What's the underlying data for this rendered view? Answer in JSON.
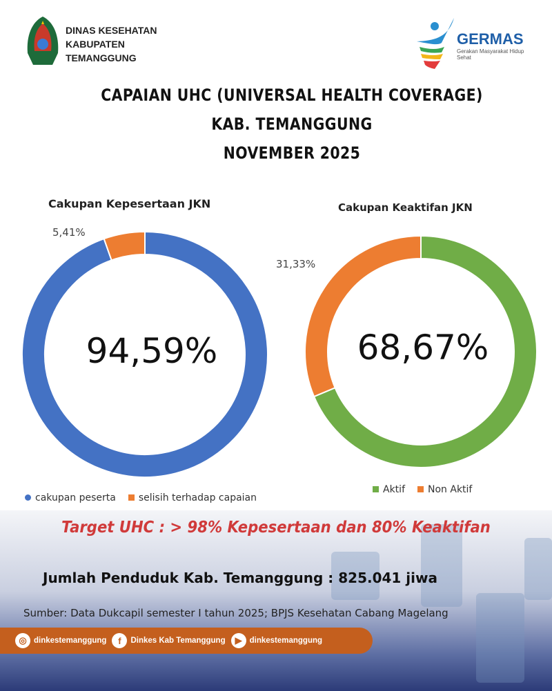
{
  "header": {
    "org_lines": [
      "DINAS KESEHATAN",
      "KABUPATEN",
      "TEMANGGUNG"
    ],
    "germas_logo": "GERMAS",
    "germas_sub": "Gerakan Masyarakat Hidup Sehat"
  },
  "title": {
    "line1": "CAPAIAN UHC (UNIVERSAL HEALTH COVERAGE)",
    "line2": "KAB. TEMANGGUNG",
    "line3": "NOVEMBER 2025"
  },
  "chart_data": [
    {
      "type": "pie",
      "title": "Cakupan Kepesertaan JKN",
      "center_label": "94,59%",
      "categories": [
        "cakupan peserta",
        "selisih terhadap capaian"
      ],
      "values": [
        94.59,
        5.41
      ],
      "colors": [
        "#4472c4",
        "#ed7d31"
      ],
      "slice_label": "5,41%",
      "legend_placement": "bottom"
    },
    {
      "type": "pie",
      "title": "Cakupan Keaktifan JKN",
      "center_label": "68,67%",
      "categories": [
        "Aktif",
        "Non Aktif"
      ],
      "values": [
        68.67,
        31.33
      ],
      "colors": [
        "#70ad47",
        "#ed7d31"
      ],
      "slice_label": "31,33%",
      "legend_placement": "bottom"
    }
  ],
  "target": "Target UHC :  > 98% Kepesertaan dan 80% Keaktifan",
  "population": "Jumlah Penduduk Kab. Temanggung : 825.041 jiwa",
  "source": "Sumber: Data Dukcapil semester I tahun 2025; BPJS Kesehatan Cabang Magelang",
  "social": [
    {
      "icon": "instagram-icon",
      "label": "dinkestemanggung"
    },
    {
      "icon": "facebook-icon",
      "label": "Dinkes Kab Temanggung"
    },
    {
      "icon": "youtube-icon",
      "label": "dinkestemanggung"
    }
  ]
}
